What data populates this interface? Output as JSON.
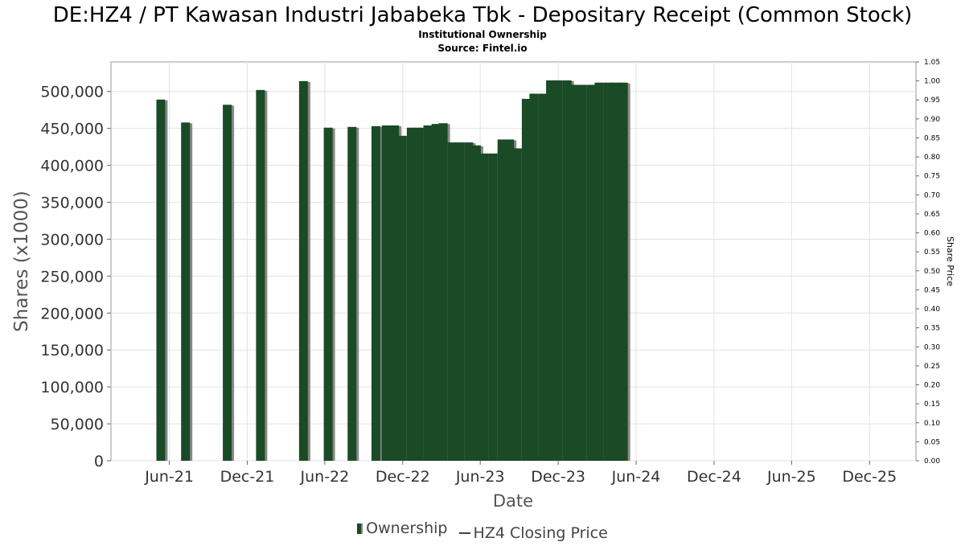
{
  "chart_data": {
    "type": "bar",
    "title": "DE:HZ4 / PT Kawasan Industri Jababeka Tbk - Depositary Receipt (Common Stock)",
    "subtitle": [
      "Institutional Ownership",
      "Source: Fintel.io"
    ],
    "xlabel": "Date",
    "ylabel": "Shares (x1000)",
    "y2label": "Share Price",
    "ylim": [
      0,
      540000
    ],
    "y_ticks": [
      "0",
      "50,000",
      "100,000",
      "150,000",
      "200,000",
      "250,000",
      "300,000",
      "350,000",
      "400,000",
      "450,000",
      "500,000"
    ],
    "y2lim": [
      0,
      1.05
    ],
    "y2_ticks": [
      "0.00",
      "0.05",
      "0.10",
      "0.15",
      "0.20",
      "0.25",
      "0.30",
      "0.35",
      "0.40",
      "0.45",
      "0.50",
      "0.55",
      "0.60",
      "0.65",
      "0.70",
      "0.75",
      "0.80",
      "0.85",
      "0.90",
      "0.95",
      "1.00",
      "1.05"
    ],
    "xlim": [
      "2021-01-15",
      "2026-03-20"
    ],
    "x_ticks": [
      {
        "label": "Jun-21",
        "date": "2021-06-01"
      },
      {
        "label": "Dec-21",
        "date": "2021-12-01"
      },
      {
        "label": "Jun-22",
        "date": "2022-06-01"
      },
      {
        "label": "Dec-22",
        "date": "2022-12-01"
      },
      {
        "label": "Jun-23",
        "date": "2023-06-01"
      },
      {
        "label": "Dec-23",
        "date": "2023-12-01"
      },
      {
        "label": "Jun-24",
        "date": "2024-06-01"
      },
      {
        "label": "Dec-24",
        "date": "2024-12-01"
      },
      {
        "label": "Jun-25",
        "date": "2025-06-01"
      },
      {
        "label": "Dec-25",
        "date": "2025-12-01"
      }
    ],
    "grid": true,
    "legend_position": "bottom",
    "series": [
      {
        "name": "Ownership",
        "color": "#1b4a27",
        "shadow_color": "#888888",
        "points": [
          {
            "date": "2021-05-12",
            "value": 489000
          },
          {
            "date": "2021-07-09",
            "value": 458000
          },
          {
            "date": "2021-10-15",
            "value": 482000
          },
          {
            "date": "2022-01-01",
            "value": 502000
          },
          {
            "date": "2022-04-12",
            "value": 514000
          },
          {
            "date": "2022-06-09",
            "value": 451000
          },
          {
            "date": "2022-08-04",
            "value": 452000
          },
          {
            "date": "2022-09-29",
            "value": 453000
          },
          {
            "date": "2022-10-23",
            "value": 454000
          },
          {
            "date": "2022-11-12",
            "value": 454000
          },
          {
            "date": "2022-11-30",
            "value": 440000
          },
          {
            "date": "2022-12-21",
            "value": 451000
          },
          {
            "date": "2023-01-08",
            "value": 451000
          },
          {
            "date": "2023-01-29",
            "value": 454000
          },
          {
            "date": "2023-02-17",
            "value": 456000
          },
          {
            "date": "2023-03-06",
            "value": 457000
          },
          {
            "date": "2023-03-27",
            "value": 431000
          },
          {
            "date": "2023-04-14",
            "value": 431000
          },
          {
            "date": "2023-05-05",
            "value": 431000
          },
          {
            "date": "2023-05-23",
            "value": 427000
          },
          {
            "date": "2023-06-10",
            "value": 416000
          },
          {
            "date": "2023-07-01",
            "value": 416000
          },
          {
            "date": "2023-07-22",
            "value": 435000
          },
          {
            "date": "2023-08-09",
            "value": 435000
          },
          {
            "date": "2023-08-27",
            "value": 423000
          },
          {
            "date": "2023-09-17",
            "value": 490000
          },
          {
            "date": "2023-10-05",
            "value": 497000
          },
          {
            "date": "2023-10-26",
            "value": 497000
          },
          {
            "date": "2023-11-13",
            "value": 515000
          },
          {
            "date": "2023-12-01",
            "value": 515000
          },
          {
            "date": "2023-12-22",
            "value": 515000
          },
          {
            "date": "2024-01-09",
            "value": 509000
          },
          {
            "date": "2024-01-27",
            "value": 509000
          },
          {
            "date": "2024-02-17",
            "value": 509000
          },
          {
            "date": "2024-03-06",
            "value": 512000
          },
          {
            "date": "2024-03-27",
            "value": 512000
          },
          {
            "date": "2024-04-14",
            "value": 512000
          },
          {
            "date": "2024-05-02",
            "value": 512000
          }
        ]
      },
      {
        "name": "HZ4 Closing Price",
        "color": "#444444",
        "values": []
      }
    ]
  }
}
